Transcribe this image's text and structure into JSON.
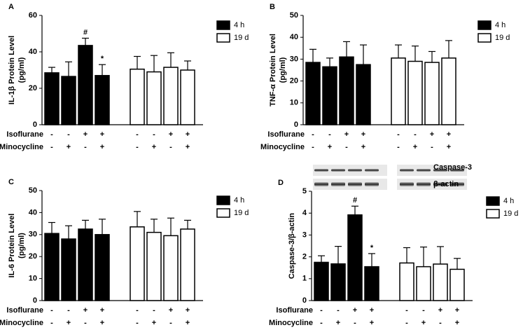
{
  "chart_data": [
    {
      "type": "bar",
      "panel_label": "A",
      "ylabel": [
        "IL-1β Protein Level",
        "(pg/ml)"
      ],
      "ylim": [
        0,
        60
      ],
      "yticks": [
        0,
        20,
        40,
        60
      ],
      "factor_rows": [
        {
          "name": "Isoflurane",
          "signs": [
            "-",
            "-",
            "+",
            "+",
            "-",
            "-",
            "+",
            "+"
          ]
        },
        {
          "name": "Minocycline",
          "signs": [
            "-",
            "+",
            "-",
            "+",
            "-",
            "+",
            "-",
            "+"
          ]
        }
      ],
      "series": [
        {
          "name": "4 h",
          "color": "#000000",
          "values": [
            28.5,
            26.5,
            43.5,
            27
          ],
          "errors": [
            3,
            8,
            4,
            6
          ],
          "value_labels": [
            null,
            null,
            "#",
            "*"
          ]
        },
        {
          "name": "19 d",
          "color": "#ffffff",
          "values": [
            30.5,
            29,
            31.5,
            30
          ],
          "errors": [
            7,
            9,
            8,
            5
          ]
        }
      ]
    },
    {
      "type": "bar",
      "panel_label": "B",
      "ylabel": [
        "TNF-α Protein Level",
        "(pg/ml)"
      ],
      "ylim": [
        0,
        50
      ],
      "yticks": [
        0,
        10,
        20,
        30,
        40,
        50
      ],
      "factor_rows": [
        {
          "name": "Isoflurane",
          "signs": [
            "-",
            "-",
            "+",
            "+",
            "-",
            "-",
            "+",
            "+"
          ]
        },
        {
          "name": "Minocycline",
          "signs": [
            "-",
            "+",
            "-",
            "+",
            "-",
            "+",
            "-",
            "+"
          ]
        }
      ],
      "series": [
        {
          "name": "4 h",
          "color": "#000000",
          "values": [
            28.5,
            26.5,
            31,
            27.5
          ],
          "errors": [
            6,
            4,
            7,
            9
          ]
        },
        {
          "name": "19 d",
          "color": "#ffffff",
          "values": [
            30.5,
            29,
            28.5,
            30.5
          ],
          "errors": [
            6,
            7,
            5,
            8
          ]
        }
      ]
    },
    {
      "type": "bar",
      "panel_label": "C",
      "ylabel": [
        "IL-6 Protein Level",
        "(pg/ml)"
      ],
      "ylim": [
        0,
        50
      ],
      "yticks": [
        0,
        10,
        20,
        30,
        40,
        50
      ],
      "factor_rows": [
        {
          "name": "Isoflurane",
          "signs": [
            "-",
            "-",
            "+",
            "+",
            "-",
            "-",
            "+",
            "+"
          ]
        },
        {
          "name": "Minocycline",
          "signs": [
            "-",
            "+",
            "-",
            "+",
            "-",
            "+",
            "-",
            "+"
          ]
        }
      ],
      "series": [
        {
          "name": "4 h",
          "color": "#000000",
          "values": [
            30.5,
            28,
            32.5,
            30
          ],
          "errors": [
            5,
            6,
            4,
            7
          ]
        },
        {
          "name": "19 d",
          "color": "#ffffff",
          "values": [
            33.5,
            31,
            29.5,
            32.5
          ],
          "errors": [
            7,
            6,
            8,
            4
          ]
        }
      ]
    },
    {
      "type": "bar",
      "panel_label": "D",
      "ylabel": [
        "Caspase-3/β-actin"
      ],
      "ylim": [
        0,
        5
      ],
      "yticks": [
        0,
        1,
        2,
        3,
        4,
        5
      ],
      "blot_labels": [
        "Caspase-3",
        "β-actin"
      ],
      "factor_rows": [
        {
          "name": "Isoflurane",
          "signs": [
            "-",
            "-",
            "+",
            "+",
            "-",
            "-",
            "+",
            "+"
          ]
        },
        {
          "name": "Minocycline",
          "signs": [
            "-",
            "+",
            "-",
            "+",
            "-",
            "+",
            "-",
            "+"
          ]
        }
      ],
      "series": [
        {
          "name": "4 h",
          "color": "#000000",
          "values": [
            1.75,
            1.68,
            3.92,
            1.55
          ],
          "errors": [
            0.3,
            0.8,
            0.4,
            0.6
          ],
          "value_labels": [
            null,
            null,
            "#",
            "*"
          ]
        },
        {
          "name": "19 d",
          "color": "#ffffff",
          "values": [
            1.72,
            1.55,
            1.67,
            1.43
          ],
          "errors": [
            0.7,
            0.9,
            0.8,
            0.5
          ]
        }
      ]
    }
  ]
}
